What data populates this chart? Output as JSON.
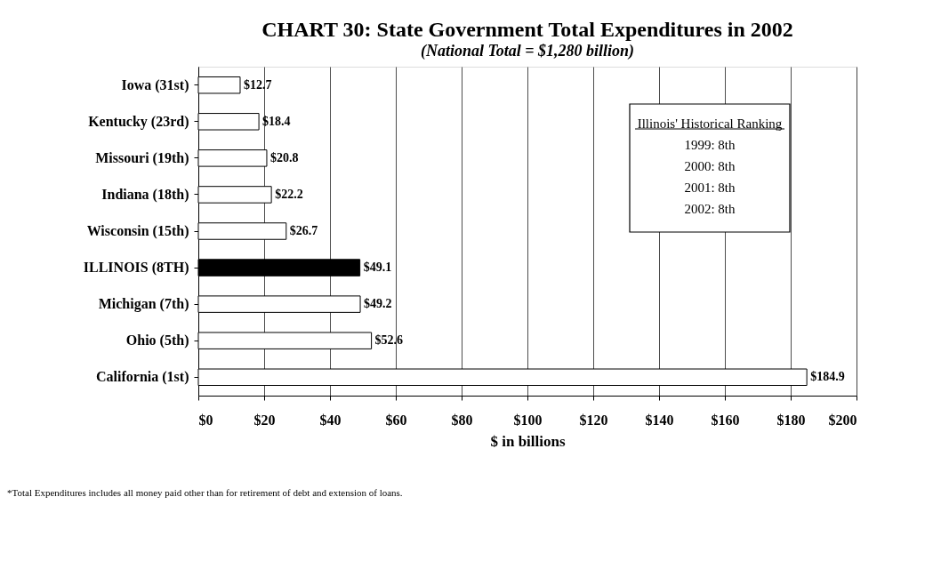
{
  "chart_data": {
    "type": "bar",
    "orientation": "horizontal",
    "title": "CHART 30: State Government Total Expenditures in 2002",
    "subtitle": "(National Total = $1,280 billion)",
    "xlabel": "$ in billions",
    "categories": [
      "Iowa (31st)",
      "Kentucky (23rd)",
      "Missouri (19th)",
      "Indiana (18th)",
      "Wisconsin (15th)",
      "ILLINOIS (8TH)",
      "Michigan (7th)",
      "Ohio (5th)",
      "California (1st)"
    ],
    "values": [
      12.7,
      18.4,
      20.8,
      22.2,
      26.7,
      49.1,
      49.2,
      52.6,
      184.9
    ],
    "value_labels": [
      "$12.7",
      "$18.4",
      "$20.8",
      "$22.2",
      "$26.7",
      "$49.1",
      "$49.2",
      "$52.6",
      "$184.9"
    ],
    "colors": [
      "#ffffff",
      "#ffffff",
      "#ffffff",
      "#ffffff",
      "#ffffff",
      "#000000",
      "#ffffff",
      "#ffffff",
      "#ffffff"
    ],
    "xlim": [
      0,
      200
    ],
    "xticks": [
      {
        "value": 0,
        "label": "$0"
      },
      {
        "value": 20,
        "label": "$20"
      },
      {
        "value": 40,
        "label": "$40"
      },
      {
        "value": 60,
        "label": "$60"
      },
      {
        "value": 80,
        "label": "$80"
      },
      {
        "value": 100,
        "label": "$100"
      },
      {
        "value": 120,
        "label": "$120"
      },
      {
        "value": 140,
        "label": "$140"
      },
      {
        "value": 160,
        "label": "$160"
      },
      {
        "value": 180,
        "label": "$180"
      },
      {
        "value": 200,
        "label": "$200"
      }
    ],
    "grid": "x",
    "annotations": [
      "Illinois' Historical Ranking",
      "1999: 8th",
      "2000: 8th",
      "2001: 8th",
      "2002: 8th",
      "*Total Expenditures includes all money paid other than for retirement of debt and extension of loans."
    ]
  }
}
